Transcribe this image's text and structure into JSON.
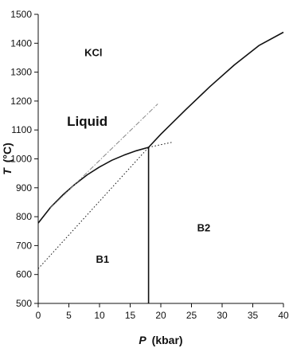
{
  "chart_data": {
    "type": "line",
    "title": "",
    "xlabel": "P (kbar)",
    "xlabel_symbol": "P",
    "xlabel_unit": "(kbar)",
    "ylabel": "T (°C)",
    "ylabel_symbol": "T",
    "ylabel_unit": "(°C)",
    "xlim": [
      0,
      40
    ],
    "ylim": [
      500,
      1500
    ],
    "xticks": [
      0,
      5,
      10,
      15,
      20,
      25,
      30,
      35,
      40
    ],
    "yticks": [
      500,
      600,
      700,
      800,
      900,
      1000,
      1100,
      1200,
      1300,
      1400,
      1500
    ],
    "grid": false,
    "legend": "none",
    "series": [
      {
        "style": "solid",
        "x": [
          0,
          2,
          4,
          6,
          8,
          10,
          12,
          14,
          16,
          18
        ],
        "y": [
          778,
          832,
          875,
          912,
          945,
          972,
          995,
          1013,
          1028,
          1040
        ]
      },
      {
        "style": "solid",
        "x": [
          18,
          20,
          24,
          28,
          32,
          36,
          40
        ],
        "y": [
          1040,
          1085,
          1169,
          1250,
          1325,
          1392,
          1438
        ]
      },
      {
        "style": "solid",
        "x": [
          18,
          18
        ],
        "y": [
          500,
          1040
        ]
      },
      {
        "style": "dashed",
        "x": [
          2,
          19.5
        ],
        "y": [
          830,
          1190
        ]
      },
      {
        "style": "dotted",
        "x": [
          0,
          18
        ],
        "y": [
          620,
          1040
        ]
      },
      {
        "style": "dotted",
        "x": [
          18,
          22
        ],
        "y": [
          1040,
          1058
        ]
      }
    ],
    "annotations": [
      {
        "text": "KCl",
        "x": 9,
        "y": 1355
      },
      {
        "text": "Liquid",
        "x": 8,
        "y": 1115
      },
      {
        "text": "B1",
        "x": 10.5,
        "y": 640
      },
      {
        "text": "B2",
        "x": 27,
        "y": 750
      }
    ]
  }
}
